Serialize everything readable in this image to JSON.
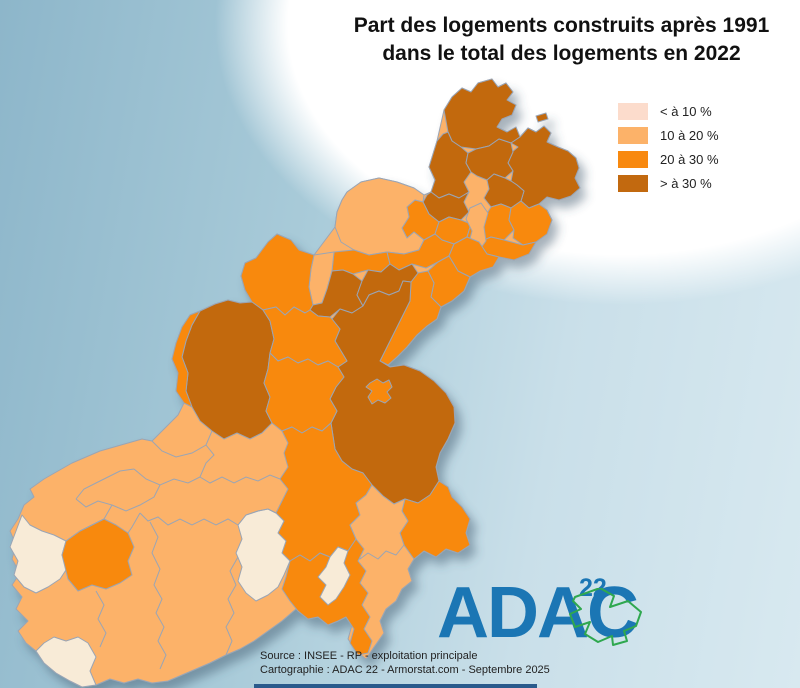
{
  "title": {
    "line1": "Part des logements construits après 1991",
    "line2": "dans le total des logements en 2022"
  },
  "legend": {
    "items": [
      {
        "label": "< à 10 %",
        "color": "#fcdccc"
      },
      {
        "label": "10 à 20 %",
        "color": "#fcb269"
      },
      {
        "label": "20 à 30 %",
        "color": "#f8890f"
      },
      {
        "label": "> à 30 %",
        "color": "#c2690f"
      }
    ]
  },
  "map": {
    "type": "choropleth",
    "classes": [
      "< à 10 %",
      "10 à 20 %",
      "20 à 30 %",
      "> à 30 %"
    ],
    "class_colors": {
      "lt10": "#f8ebd7",
      "c10_20": "#fcb269",
      "c20_30": "#f8890f",
      "gt30": "#c2690f"
    },
    "boundary_color": "#9aa5b5",
    "sea_color_left": "#8db6ca",
    "sea_color_right": "#d8e9f0"
  },
  "logo": {
    "text": "ADAC",
    "superscript": "22",
    "color": "#1b76b4",
    "outline_color": "#2fa84f"
  },
  "footer": {
    "source_line1": "Source : INSEE - RP - exploitation principale",
    "source_line2": "Cartographie : ADAC 22 - Armorstat.com - Septembre 2025",
    "bar_color": "#2a5a8c"
  }
}
